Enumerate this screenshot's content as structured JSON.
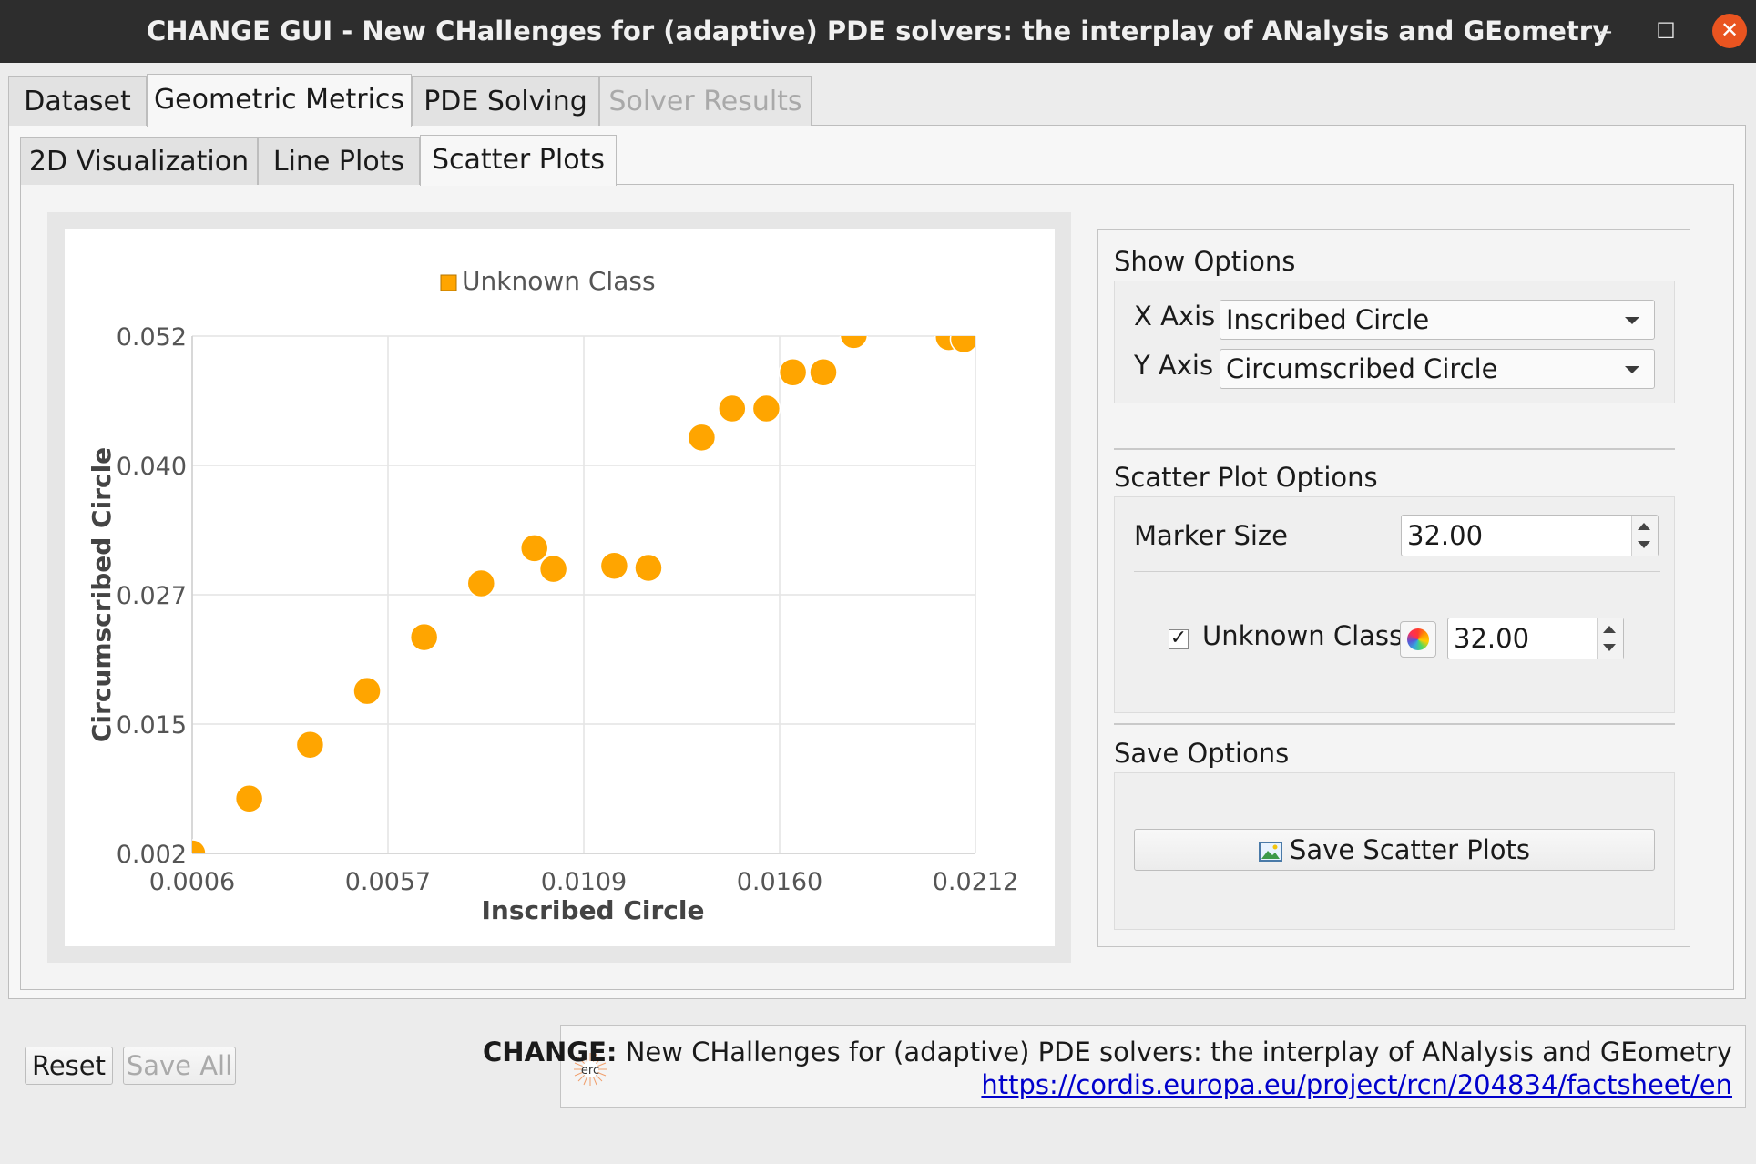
{
  "window": {
    "title": "CHANGE GUI - New CHallenges for (adaptive) PDE solvers: the interplay of ANalysis and GEometry",
    "min_icon": "minimize-icon",
    "max_icon": "maximize-icon",
    "close_icon": "close-icon"
  },
  "main_tabs": [
    {
      "label": "Dataset",
      "state": "normal"
    },
    {
      "label": "Geometric Metrics",
      "state": "active"
    },
    {
      "label": "PDE Solving",
      "state": "normal"
    },
    {
      "label": "Solver Results",
      "state": "disabled"
    }
  ],
  "sub_tabs": [
    {
      "label": "2D Visualization",
      "state": "normal"
    },
    {
      "label": "Line Plots",
      "state": "normal"
    },
    {
      "label": "Scatter Plots",
      "state": "active"
    }
  ],
  "chart_data": {
    "type": "scatter",
    "title": "",
    "xlabel": "Inscribed Circle",
    "ylabel": "Circumscribed Circle",
    "xlim": [
      0.0006,
      0.0212
    ],
    "ylim": [
      0.002,
      0.052
    ],
    "x_ticks": [
      "0.0006",
      "0.0057",
      "0.0109",
      "0.0160",
      "0.0212"
    ],
    "y_ticks": [
      "0.052",
      "0.040",
      "0.027",
      "0.015",
      "0.002"
    ],
    "grid": true,
    "legend_position": "top-center",
    "series": [
      {
        "name": "Unknown Class",
        "color": "#ffa500",
        "points": [
          [
            0.0006,
            0.002
          ],
          [
            0.0021,
            0.0073
          ],
          [
            0.0037,
            0.0125
          ],
          [
            0.0052,
            0.0177
          ],
          [
            0.0067,
            0.0229
          ],
          [
            0.0082,
            0.0281
          ],
          [
            0.0096,
            0.0315
          ],
          [
            0.0101,
            0.0295
          ],
          [
            0.0117,
            0.0298
          ],
          [
            0.0126,
            0.0296
          ],
          [
            0.014,
            0.0422
          ],
          [
            0.0148,
            0.045
          ],
          [
            0.0157,
            0.045
          ],
          [
            0.0164,
            0.0485
          ],
          [
            0.0172,
            0.0485
          ],
          [
            0.018,
            0.0521
          ],
          [
            0.0205,
            0.0519
          ],
          [
            0.0209,
            0.0517
          ]
        ]
      }
    ]
  },
  "options": {
    "show_title": "Show Options",
    "x_axis_label": "X Axis",
    "x_axis_value": "Inscribed Circle",
    "y_axis_label": "Y Axis",
    "y_axis_value": "Circumscribed Circle",
    "scatter_title": "Scatter Plot Options",
    "marker_size_label": "Marker Size",
    "marker_size_value": "32.00",
    "class_label": "Unknown Class",
    "class_checked": "✓",
    "class_size_value": "32.00",
    "save_title": "Save Options",
    "save_button": "Save Scatter Plots"
  },
  "bottom": {
    "reset": "Reset",
    "save_all": "Save All",
    "project_name": "CHANGE:",
    "project_desc": " New CHallenges for (adaptive) PDE solvers: the interplay of ANalysis and GEometry",
    "project_link": "https://cordis.europa.eu/project/rcn/204834/factsheet/en",
    "logo_text": "erc"
  }
}
